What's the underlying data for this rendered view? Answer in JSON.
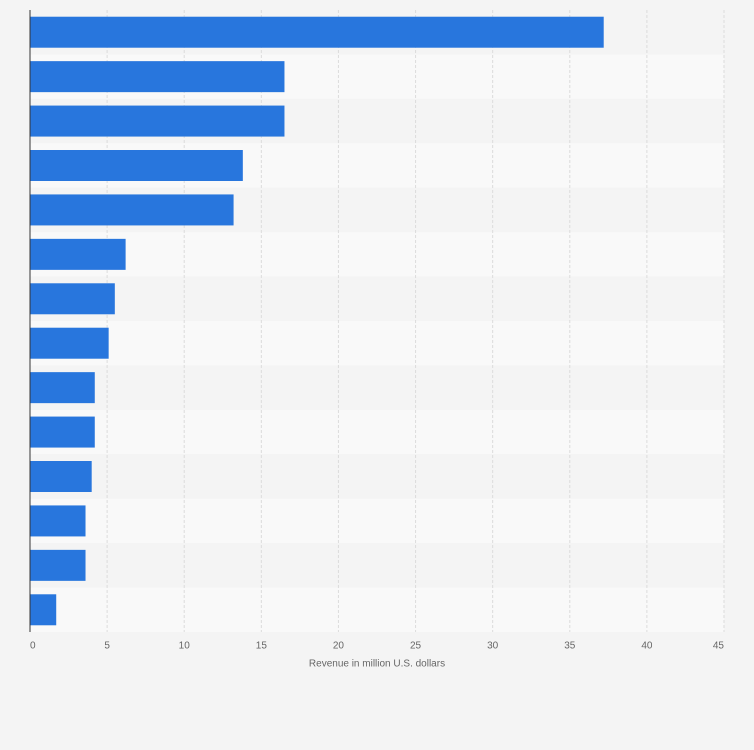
{
  "chart_data": {
    "type": "barh",
    "x_label": "Revenue in million U.S. dollars",
    "categories": [
      null,
      null,
      null,
      null,
      null,
      null,
      null,
      null,
      null,
      null,
      null,
      null,
      null,
      null
    ],
    "values": [
      37.2,
      16.5,
      16.5,
      13.8,
      13.2,
      6.2,
      5.5,
      5.1,
      4.2,
      4.2,
      4.0,
      3.6,
      3.6,
      1.7
    ],
    "color": "#2876dd",
    "xlim": [
      0,
      45
    ],
    "xticks": [
      0,
      5,
      10,
      15,
      20,
      25,
      30,
      35,
      40,
      45
    ],
    "grid": true
  }
}
